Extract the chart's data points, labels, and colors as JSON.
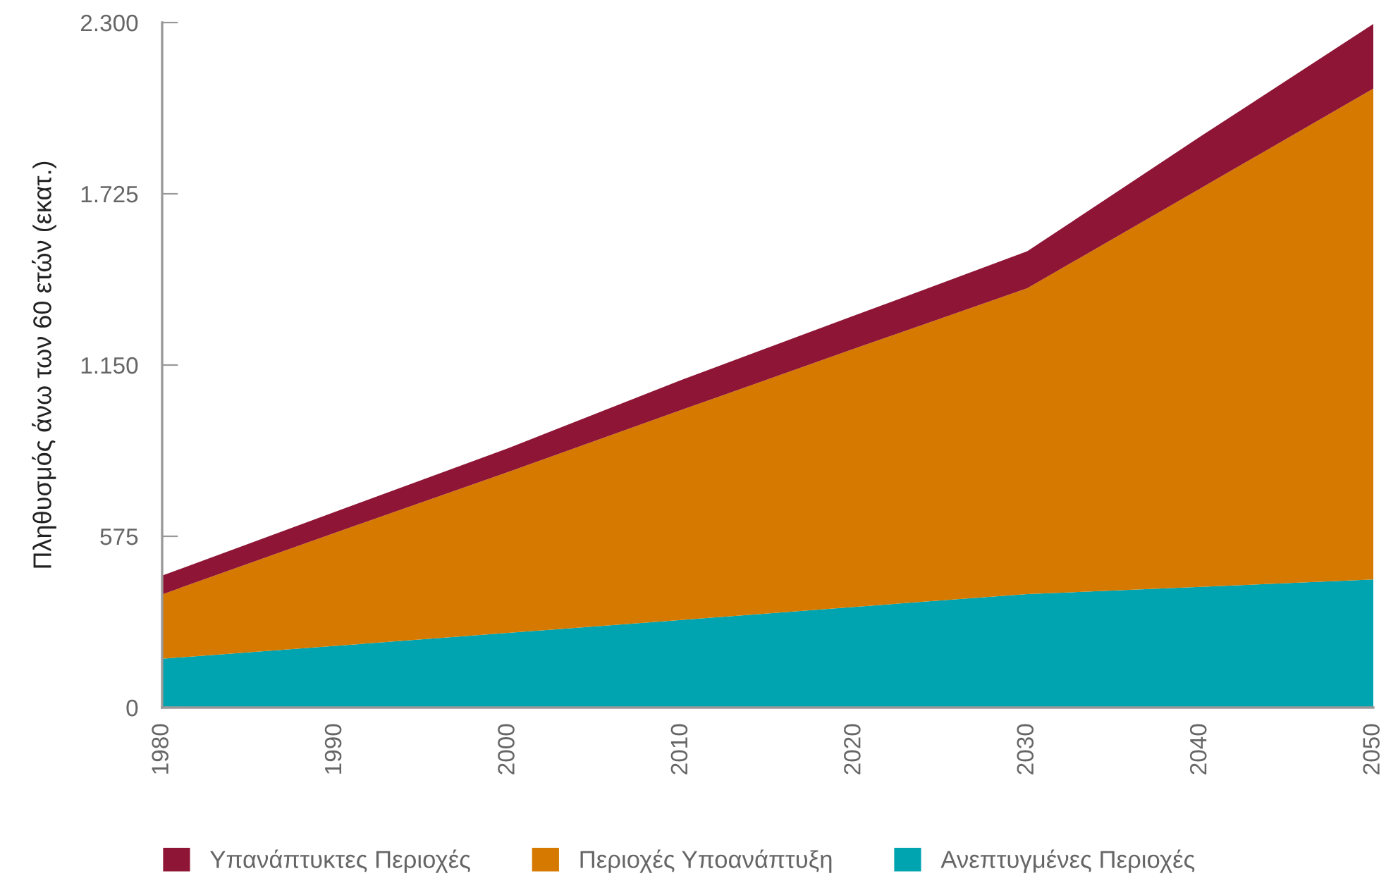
{
  "chart_data": {
    "type": "area",
    "stacked": true,
    "ylabel": "Πληθυσμός άνω των 60 ετών (εκατ.)",
    "x": [
      1980,
      1990,
      2000,
      2010,
      2020,
      2030,
      2040,
      2050
    ],
    "series": [
      {
        "name": "Ανεπτυγμένες Περιοχές",
        "color": "#00a3b0",
        "values": [
          164,
          207,
          251,
          294,
          338,
          381,
          405,
          430
        ]
      },
      {
        "name": "Περιοχές Υποανάπτυξη",
        "color": "#d67900",
        "values": [
          216,
          380,
          540,
          705,
          867,
          1027,
          1338,
          1648
        ]
      },
      {
        "name": "Υπανάπτυκτες Περιοχές",
        "color": "#8e1535",
        "values": [
          63,
          70,
          80,
          101,
          111,
          124,
          174,
          217
        ]
      }
    ],
    "xlim": [
      1980,
      2050
    ],
    "xticks": [
      1980,
      1990,
      2000,
      2010,
      2020,
      2030,
      2040,
      2050
    ],
    "ylim": [
      0,
      2300
    ],
    "yticks": [
      0,
      575,
      {
        "value": 1150,
        "label": "1.150"
      },
      {
        "value": 1725,
        "label": "1.725"
      },
      {
        "value": 2300,
        "label": "2.300"
      }
    ],
    "grid": false,
    "legend": "bottom"
  }
}
